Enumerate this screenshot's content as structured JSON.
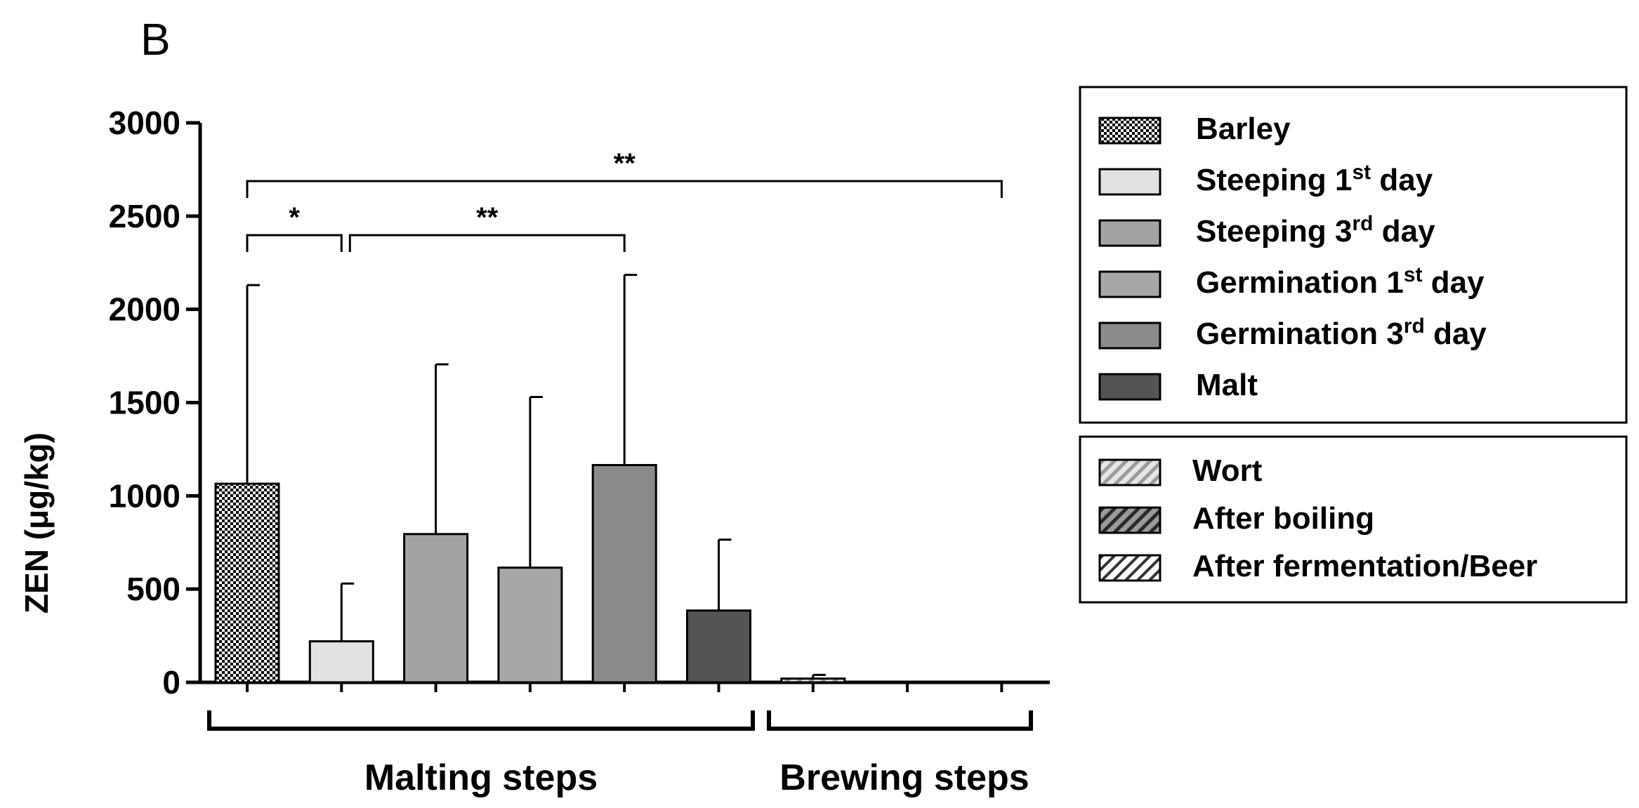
{
  "panel_label": "B",
  "chart_data": {
    "type": "bar",
    "ylabel": "ZEN (μg/kg)",
    "ylim": [
      0,
      3000
    ],
    "yticks": [
      0,
      500,
      1000,
      1500,
      2000,
      2500,
      3000
    ],
    "series": [
      {
        "name": "Barley",
        "value": 1065,
        "error": 1065,
        "fill": "dense-check",
        "color": "#ffffff"
      },
      {
        "name": "Steeping 1st day",
        "value": 220,
        "error": 310,
        "fill": "solid",
        "color": "#e2e2e2"
      },
      {
        "name": "Steeping 3rd day",
        "value": 795,
        "error": 910,
        "fill": "solid",
        "color": "#a3a3a5"
      },
      {
        "name": "Germination 1st day",
        "value": 615,
        "error": 915,
        "fill": "solid",
        "color": "#a7a7a7"
      },
      {
        "name": "Germination 3rd day",
        "value": 1165,
        "error": 1020,
        "fill": "solid",
        "color": "#8a8a8a"
      },
      {
        "name": "Malt",
        "value": 385,
        "error": 380,
        "fill": "solid",
        "color": "#545454"
      },
      {
        "name": "Wort",
        "value": 20,
        "error": 20,
        "fill": "hatch",
        "color": "#bfbfbf"
      },
      {
        "name": "After boiling",
        "value": 0,
        "error": 0,
        "fill": "hatch",
        "color": "#7f7f7f"
      },
      {
        "name": "After fermentation/Beer",
        "value": 0,
        "error": 0,
        "fill": "hatch",
        "color": "#ffffff"
      }
    ],
    "legend_groups": [
      {
        "name": "malting",
        "items": [
          {
            "main": "Barley",
            "sup": "",
            "tail": ""
          },
          {
            "main": "Steeping 1",
            "sup": "st",
            "tail": " day"
          },
          {
            "main": "Steeping 3",
            "sup": "rd",
            "tail": " day"
          },
          {
            "main": "Germination 1",
            "sup": "st",
            "tail": " day"
          },
          {
            "main": "Germination 3",
            "sup": "rd",
            "tail": " day"
          },
          {
            "main": "Malt",
            "sup": "",
            "tail": ""
          }
        ]
      },
      {
        "name": "brewing",
        "items": [
          {
            "main": "Wort",
            "sup": "",
            "tail": ""
          },
          {
            "main": "After boiling",
            "sup": "",
            "tail": ""
          },
          {
            "main": "After fermentation/Beer",
            "sup": "",
            "tail": ""
          }
        ]
      }
    ],
    "significance": [
      {
        "from": 0,
        "to": 1,
        "label": "*"
      },
      {
        "from": 1,
        "to": 4,
        "label": "**"
      },
      {
        "from": 0,
        "to": 8,
        "label": "**"
      }
    ],
    "groups": [
      {
        "label": "Malting steps",
        "from": 0,
        "to": 5
      },
      {
        "label": "Brewing steps",
        "from": 6,
        "to": 8
      }
    ]
  }
}
